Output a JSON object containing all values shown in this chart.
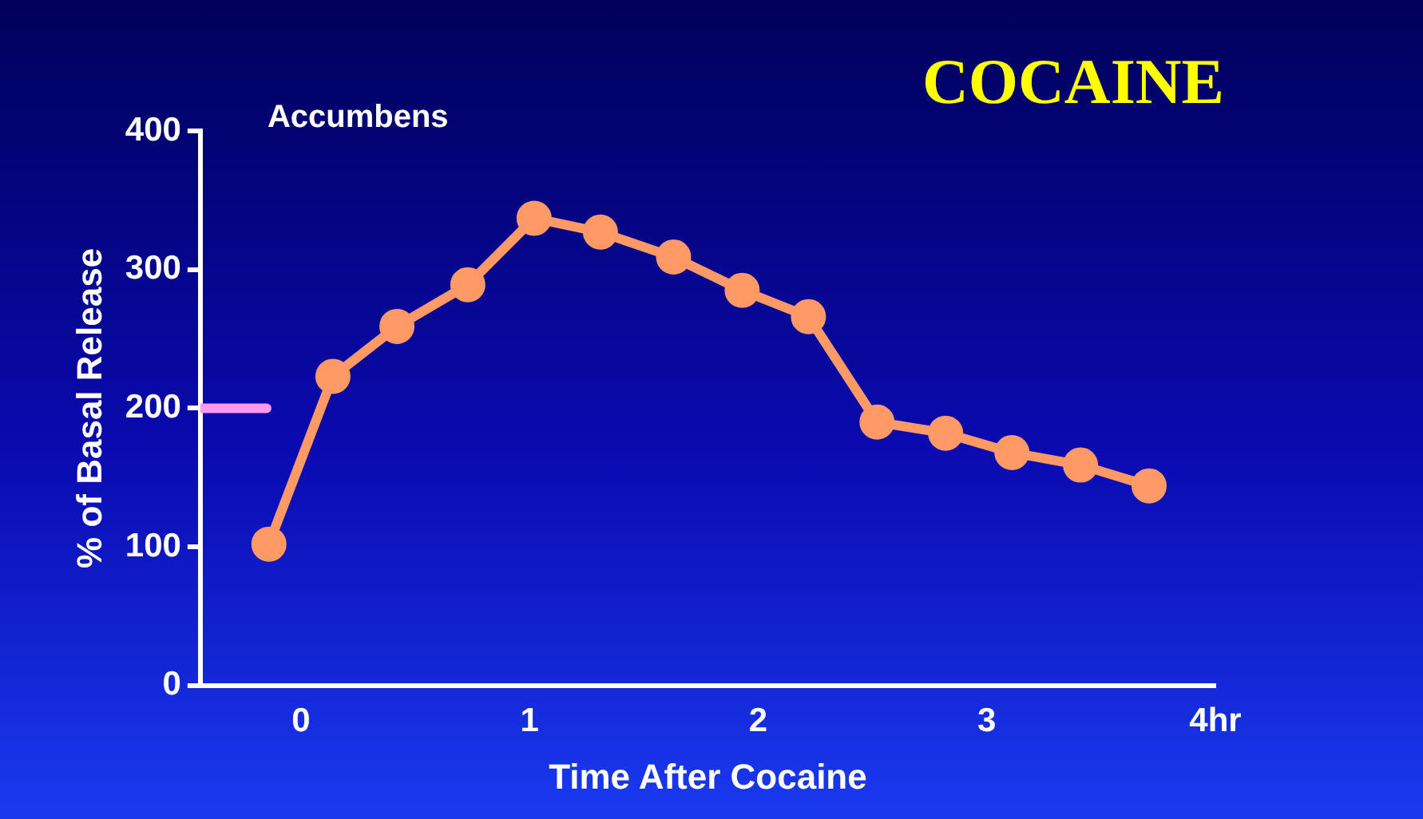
{
  "chart_data": {
    "type": "line",
    "title": "COCAINE",
    "subtitle": "Accumbens",
    "xlabel": "Time After Cocaine",
    "ylabel": "% of Basal Release",
    "x": [
      -0.14,
      0.14,
      0.42,
      0.73,
      1.02,
      1.31,
      1.63,
      1.93,
      2.22,
      2.52,
      2.82,
      3.11,
      3.41,
      3.71
    ],
    "series": [
      {
        "color": "#ff9966",
        "values": [
          102,
          223,
          259,
          289,
          337,
          327,
          309,
          285,
          266,
          190,
          182,
          168,
          159,
          144
        ]
      },
      {
        "color": "#ff99ee",
        "x": [
          -0.44,
          -0.15
        ],
        "values": [
          200,
          200
        ],
        "marker": "none"
      }
    ],
    "xlim": [
      -0.44,
      4
    ],
    "xticks": [
      0,
      1,
      2,
      3,
      {
        "value": 4,
        "label": "4hr"
      }
    ],
    "ylim": [
      0,
      400
    ],
    "yticks": [
      0,
      100,
      200,
      300,
      400
    ],
    "grid": false,
    "legend": false,
    "marker": "circle",
    "line_style": "solid"
  }
}
